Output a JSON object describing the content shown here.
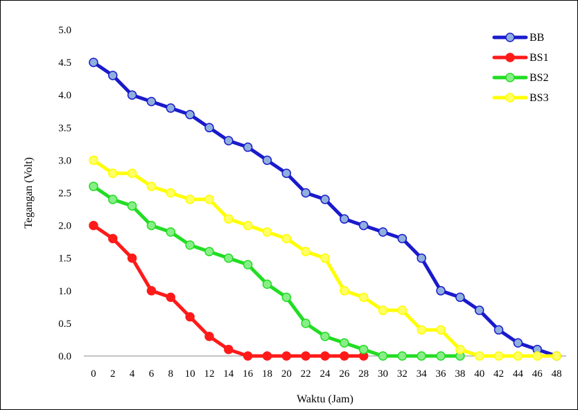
{
  "chart_data": {
    "type": "line",
    "xlabel": "Waktu (Jam)",
    "ylabel": "Tegangan (Volt)",
    "ylim": [
      0,
      5
    ],
    "yticks": [
      0,
      0.5,
      1,
      1.5,
      2,
      2.5,
      3,
      3.5,
      4,
      4.5,
      5
    ],
    "ytick_labels": [
      "0.0",
      "0.5",
      "1.0",
      "1.5",
      "2.0",
      "2.5",
      "3.0",
      "3.5",
      "4.0",
      "4.5",
      "5.0"
    ],
    "x": [
      0,
      2,
      4,
      6,
      8,
      10,
      12,
      14,
      16,
      18,
      20,
      22,
      24,
      26,
      28,
      30,
      32,
      34,
      36,
      38,
      40,
      42,
      44,
      46,
      48
    ],
    "legend_position": "top-right",
    "grid": false,
    "series": [
      {
        "name": "BB",
        "color": "#1a1acc",
        "marker_fill": "#8fb0dd",
        "values": [
          4.5,
          4.3,
          4.0,
          3.9,
          3.8,
          3.7,
          3.5,
          3.3,
          3.2,
          3.0,
          2.8,
          2.5,
          2.4,
          2.1,
          2.0,
          1.9,
          1.8,
          1.5,
          1.0,
          0.9,
          0.7,
          0.4,
          0.2,
          0.1,
          0.0
        ]
      },
      {
        "name": "BS1",
        "color": "#ff1a1a",
        "marker_fill": "#ff1a1a",
        "values": [
          2.0,
          1.8,
          1.5,
          1.0,
          0.9,
          0.6,
          0.3,
          0.1,
          0.0,
          0.0,
          0.0,
          0.0,
          0.0,
          0.0,
          0.0,
          null,
          null,
          null,
          null,
          null,
          null,
          null,
          null,
          null,
          null
        ]
      },
      {
        "name": "BS2",
        "color": "#22dd22",
        "marker_fill": "#88ee88",
        "values": [
          2.6,
          2.4,
          2.3,
          2.0,
          1.9,
          1.7,
          1.6,
          1.5,
          1.4,
          1.1,
          0.9,
          0.5,
          0.3,
          0.2,
          0.1,
          0.0,
          0.0,
          0.0,
          0.0,
          0.0,
          null,
          null,
          null,
          null,
          null
        ]
      },
      {
        "name": "BS3",
        "color": "#ffff00",
        "marker_fill": "#ffff66",
        "values": [
          3.0,
          2.8,
          2.8,
          2.6,
          2.5,
          2.4,
          2.4,
          2.1,
          2.0,
          1.9,
          1.8,
          1.6,
          1.5,
          1.0,
          0.9,
          0.7,
          0.7,
          0.4,
          0.4,
          0.1,
          0.0,
          0.0,
          0.0,
          0.0,
          0.0
        ]
      }
    ]
  }
}
